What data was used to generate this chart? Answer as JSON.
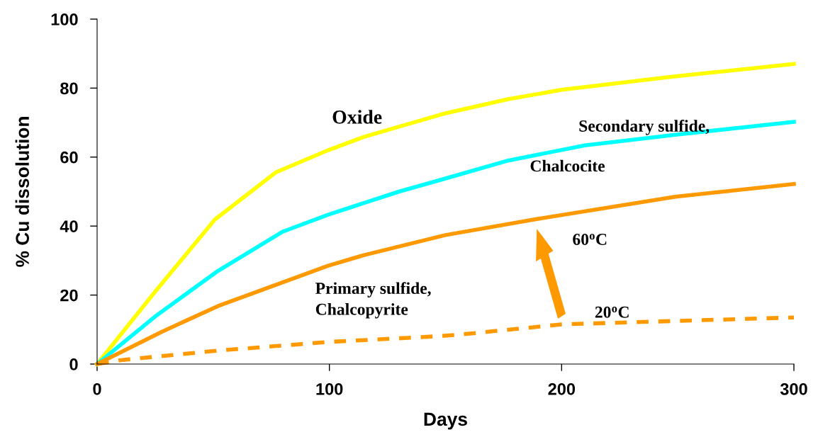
{
  "chart_data": {
    "type": "line",
    "xlabel": "Days",
    "ylabel": "% Cu dissolution",
    "xlim": [
      0,
      300
    ],
    "xticks": [
      0,
      100,
      200,
      300
    ],
    "ylim": [
      0,
      100
    ],
    "yticks": [
      0,
      20,
      40,
      60,
      80,
      100
    ],
    "grid": false,
    "legend": false,
    "marker": "none",
    "series": [
      {
        "color": "#ffff00",
        "line_style": "solid",
        "x": [
          0,
          25,
          50.7,
          77,
          99.5,
          115,
          150,
          177,
          200,
          249,
          300
        ],
        "values": [
          0,
          21,
          41.9,
          55.6,
          62,
          65.9,
          72.7,
          76.8,
          79.5,
          83.4,
          87
        ]
      },
      {
        "color": "#00ffff",
        "line_style": "solid",
        "x": [
          0,
          25,
          52,
          80,
          99.5,
          130,
          150,
          177,
          210,
          249,
          300
        ],
        "values": [
          0,
          13.8,
          27,
          38.4,
          43.3,
          50,
          53.8,
          59,
          63.4,
          66.5,
          70.2
        ]
      },
      {
        "color": "#ff9900",
        "line_style": "solid",
        "x": [
          0,
          28,
          52,
          99.5,
          115,
          150,
          188,
          249,
          300
        ],
        "values": [
          0,
          9.4,
          16.8,
          28.5,
          31.6,
          37.4,
          41.9,
          48.5,
          52.2
        ]
      },
      {
        "color": "#ff9900",
        "line_style": "dashed",
        "x": [
          0,
          11,
          52,
          99.5,
          145,
          157,
          200,
          249,
          300
        ],
        "values": [
          0,
          1.2,
          3.9,
          6.4,
          8,
          8.6,
          11.5,
          12.5,
          13.5
        ]
      }
    ],
    "annotations": [
      "Oxide",
      "Secondary sulfide,",
      "Chalcocite",
      "Primary sulfide,\nChalcopyrite",
      "60$^{o}$C",
      "20$^{o}$C"
    ]
  }
}
